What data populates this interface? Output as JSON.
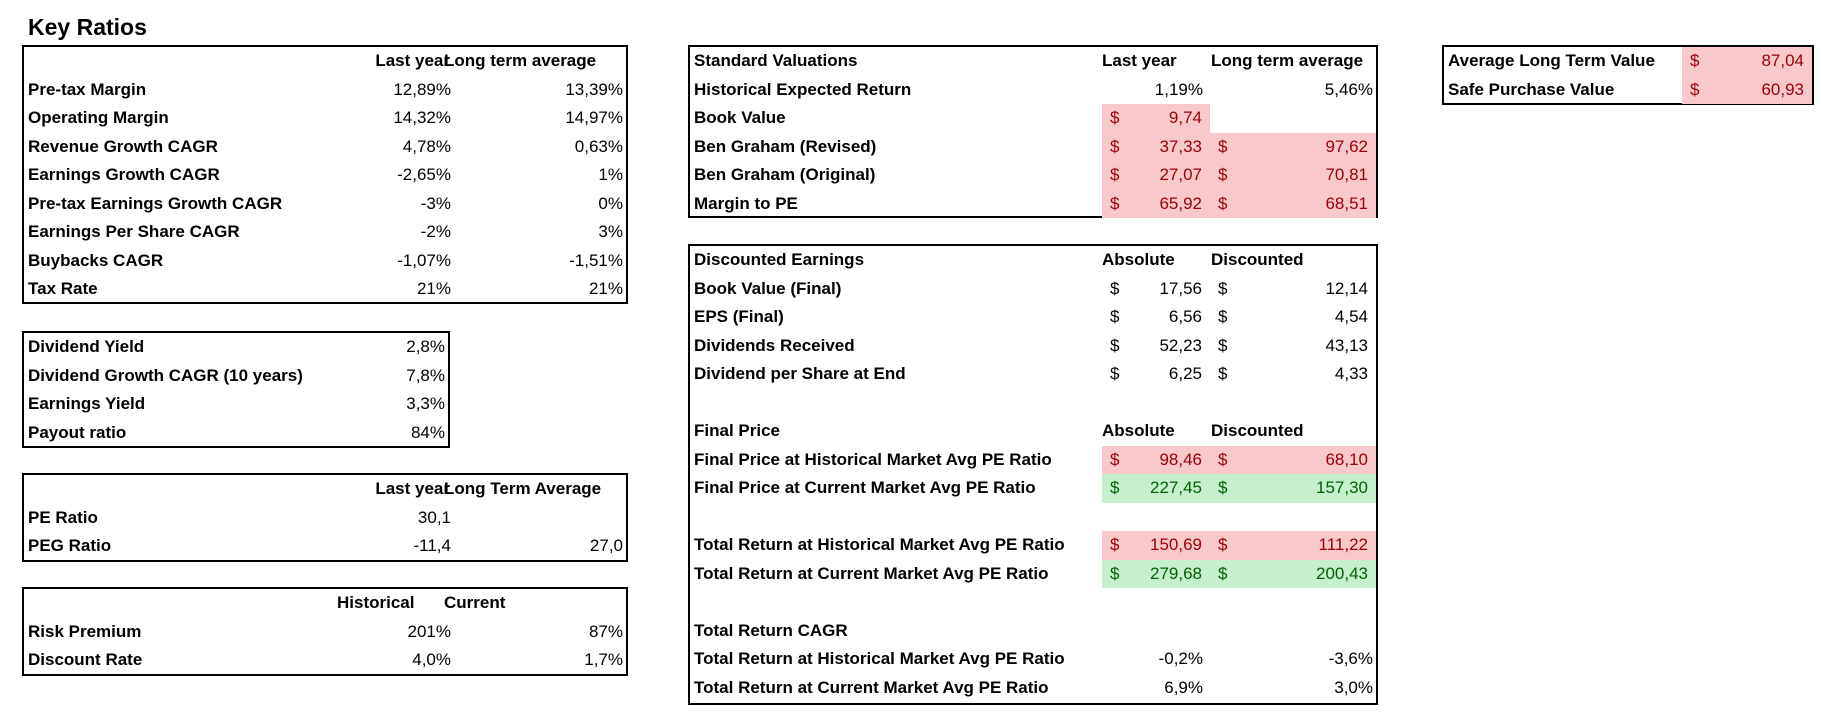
{
  "title": "Key Ratios",
  "margins": {
    "hdr_last": "Last year",
    "hdr_long": "Long term average",
    "rows": [
      {
        "label": "Pre-tax Margin",
        "last": "12,89%",
        "long": "13,39%"
      },
      {
        "label": "Operating Margin",
        "last": "14,32%",
        "long": "14,97%"
      },
      {
        "label": "Revenue Growth CAGR",
        "last": "4,78%",
        "long": "0,63%"
      },
      {
        "label": "Earnings Growth CAGR",
        "last": "-2,65%",
        "long": "1%"
      },
      {
        "label": "Pre-tax Earnings Growth CAGR",
        "last": "-3%",
        "long": "0%"
      },
      {
        "label": "Earnings Per Share CAGR",
        "last": "-2%",
        "long": "3%"
      },
      {
        "label": "Buybacks CAGR",
        "last": "-1,07%",
        "long": "-1,51%"
      },
      {
        "label": "Tax Rate",
        "last": "21%",
        "long": "21%"
      }
    ]
  },
  "dividends": {
    "rows": [
      {
        "label": "Dividend Yield",
        "value": "2,8%"
      },
      {
        "label": "Dividend Growth CAGR (10 years)",
        "value": "7,8%"
      },
      {
        "label": "Earnings Yield",
        "value": "3,3%"
      },
      {
        "label": "Payout ratio",
        "value": "84%"
      }
    ]
  },
  "pe": {
    "hdr_last": "Last year",
    "hdr_long": "Long Term Average",
    "rows": [
      {
        "label": "PE Ratio",
        "last": "30,1",
        "long": ""
      },
      {
        "label": "PEG Ratio",
        "last": "-11,4",
        "long": "27,0"
      }
    ]
  },
  "risk": {
    "hdr_hist": "Historical",
    "hdr_cur": "Current",
    "rows": [
      {
        "label": "Risk Premium",
        "hist": "201%",
        "cur": "87%"
      },
      {
        "label": "Discount Rate",
        "hist": "4,0%",
        "cur": "1,7%"
      }
    ]
  },
  "standard": {
    "hdr_title": "Standard Valuations",
    "hdr_last": "Last year",
    "hdr_long": "Long term average",
    "expected": {
      "label": "Historical Expected Return",
      "last": "1,19%",
      "long": "5,46%"
    },
    "rows": [
      {
        "label": "Book Value",
        "last": "9,74",
        "long": ""
      },
      {
        "label": "Ben Graham (Revised)",
        "last": "37,33",
        "long": "97,62"
      },
      {
        "label": "Ben Graham (Original)",
        "last": "27,07",
        "long": "70,81"
      },
      {
        "label": "Margin to PE",
        "last": "65,92",
        "long": "68,51"
      }
    ]
  },
  "discounted": {
    "hdr_title": "Discounted Earnings",
    "hdr_abs": "Absolute",
    "hdr_disc": "Discounted",
    "rows": [
      {
        "label": "Book Value (Final)",
        "abs": "17,56",
        "disc": "12,14"
      },
      {
        "label": "EPS (Final)",
        "abs": "6,56",
        "disc": "4,54"
      },
      {
        "label": "Dividends Received",
        "abs": "52,23",
        "disc": "43,13"
      },
      {
        "label": "Dividend per Share at End",
        "abs": "6,25",
        "disc": "4,33"
      }
    ],
    "final_title": "Final Price",
    "final_abs": "Absolute",
    "final_disc": "Discounted",
    "final_rows": [
      {
        "label": "Final Price at Historical Market Avg PE Ratio",
        "abs": "98,46",
        "disc": "68,10"
      },
      {
        "label": "Final Price at Current Market Avg PE Ratio",
        "abs": "227,45",
        "disc": "157,30"
      }
    ],
    "total_rows": [
      {
        "label": "Total Return at Historical Market Avg PE Ratio",
        "abs": "150,69",
        "disc": "111,22"
      },
      {
        "label": "Total Return at Current Market Avg PE Ratio",
        "abs": "279,68",
        "disc": "200,43"
      }
    ],
    "cagr_title": "Total Return CAGR",
    "cagr_rows": [
      {
        "label": "Total Return at Historical Market Avg PE Ratio",
        "abs": "-0,2%",
        "disc": "-3,6%"
      },
      {
        "label": "Total Return at Current Market Avg PE Ratio",
        "abs": "6,9%",
        "disc": "3,0%"
      }
    ]
  },
  "summary": {
    "rows": [
      {
        "label": "Average Long Term Value",
        "value": "87,04"
      },
      {
        "label": "Safe Purchase Value",
        "value": "60,93"
      }
    ]
  },
  "currency": "$",
  "colors": {
    "neg_fill": "#f8c8cb",
    "neg_text": "#9c0006",
    "pos_fill": "#c6efce",
    "pos_text": "#006100"
  }
}
